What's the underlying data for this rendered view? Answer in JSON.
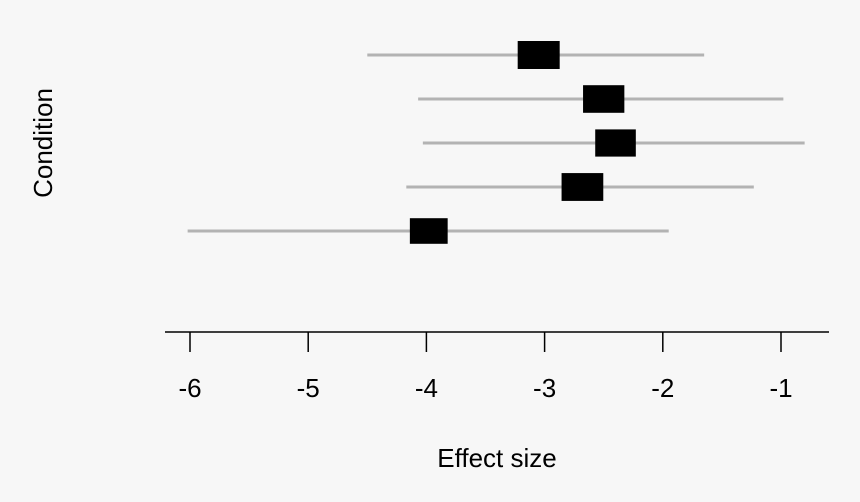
{
  "chart_data": {
    "type": "forest",
    "xlabel": "Effect size",
    "ylabel": "Condition",
    "xlim": [
      -6,
      -1
    ],
    "xticks": [
      -6,
      -5,
      -4,
      -3,
      -2,
      -1
    ],
    "x_tick_labels": [
      "-6",
      "-5",
      "-4",
      "-3",
      "-2",
      "-1"
    ],
    "rows": [
      {
        "estimate": -3.05,
        "lower": -4.5,
        "upper": -1.65,
        "weight": 1.0
      },
      {
        "estimate": -2.5,
        "lower": -4.07,
        "upper": -0.98,
        "weight": 0.95
      },
      {
        "estimate": -2.4,
        "lower": -4.03,
        "upper": -0.8,
        "weight": 0.9
      },
      {
        "estimate": -2.68,
        "lower": -4.17,
        "upper": -1.23,
        "weight": 0.98
      },
      {
        "estimate": -3.98,
        "lower": -6.02,
        "upper": -1.95,
        "weight": 0.7
      }
    ],
    "colors": {
      "interval": "#b3b3b3",
      "marker": "#000000",
      "axis": "#000000",
      "background": "#f7f7f7"
    }
  }
}
